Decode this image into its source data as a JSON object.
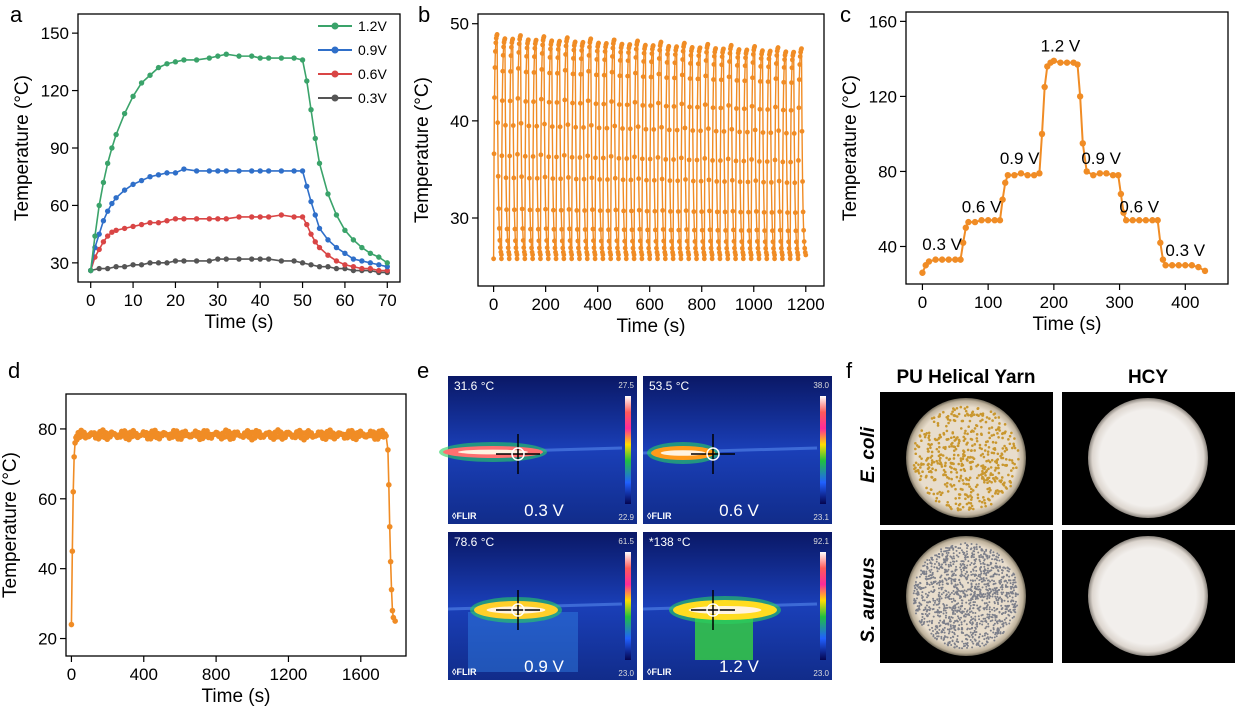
{
  "chart_data": [
    {
      "type": "line",
      "panel": "a",
      "xlabel": "Time (s)",
      "ylabel": "Temperature (°C)",
      "xlim": [
        -3,
        73
      ],
      "ylim": [
        20,
        160
      ],
      "xticks": [
        0,
        10,
        20,
        30,
        40,
        50,
        60,
        70
      ],
      "yticks": [
        30,
        60,
        90,
        120,
        150
      ],
      "legend_position": "top-right",
      "series": [
        {
          "name": "1.2V",
          "color": "#3aa36a",
          "x": [
            0,
            1,
            2,
            3,
            4,
            5,
            6,
            8,
            10,
            12,
            14,
            16,
            18,
            20,
            22,
            25,
            28,
            30,
            32,
            35,
            38,
            40,
            42,
            45,
            48,
            50,
            51,
            52,
            53,
            54,
            56,
            58,
            60,
            62,
            64,
            66,
            68,
            70
          ],
          "y": [
            26,
            44,
            60,
            72,
            82,
            90,
            97,
            108,
            117,
            124,
            128,
            132,
            134,
            135,
            136,
            136,
            137,
            138,
            139,
            138,
            138,
            137,
            137,
            137,
            137,
            136,
            125,
            110,
            95,
            82,
            66,
            55,
            47,
            42,
            38,
            35,
            33,
            30
          ]
        },
        {
          "name": "0.9V",
          "color": "#2f6fc9",
          "x": [
            0,
            1,
            2,
            3,
            4,
            5,
            6,
            8,
            10,
            12,
            14,
            16,
            18,
            20,
            22,
            25,
            28,
            30,
            32,
            35,
            38,
            40,
            42,
            45,
            48,
            50,
            51,
            52,
            53,
            54,
            56,
            58,
            60,
            62,
            64,
            66,
            68,
            70
          ],
          "y": [
            26,
            38,
            45,
            52,
            57,
            61,
            64,
            68,
            71,
            73,
            75,
            76,
            77,
            77,
            79,
            78,
            78,
            78,
            78,
            78,
            78,
            78,
            78,
            78,
            78,
            78,
            70,
            62,
            55,
            48,
            42,
            38,
            35,
            32,
            31,
            30,
            29,
            28
          ]
        },
        {
          "name": "0.6V",
          "color": "#d94545",
          "x": [
            0,
            1,
            2,
            3,
            4,
            5,
            6,
            8,
            10,
            12,
            14,
            16,
            18,
            20,
            22,
            25,
            28,
            30,
            32,
            35,
            38,
            40,
            42,
            45,
            48,
            50,
            51,
            52,
            53,
            54,
            56,
            58,
            60,
            62,
            64,
            66,
            68,
            70
          ],
          "y": [
            26,
            33,
            37,
            41,
            44,
            46,
            47,
            48,
            49,
            50,
            51,
            51,
            52,
            53,
            53,
            53,
            53,
            53,
            53,
            54,
            54,
            54,
            54,
            55,
            54,
            54,
            50,
            45,
            41,
            38,
            34,
            31,
            29,
            28,
            27,
            27,
            26,
            26
          ]
        },
        {
          "name": "0.3V",
          "color": "#555555",
          "x": [
            0,
            2,
            4,
            6,
            8,
            10,
            12,
            14,
            16,
            18,
            20,
            22,
            25,
            28,
            30,
            32,
            35,
            38,
            40,
            42,
            45,
            48,
            50,
            52,
            54,
            56,
            58,
            60,
            62,
            64,
            66,
            68,
            70
          ],
          "y": [
            26,
            27,
            27,
            28,
            28,
            29,
            29,
            30,
            30,
            30,
            31,
            31,
            31,
            31,
            32,
            32,
            32,
            32,
            32,
            32,
            31,
            31,
            30,
            29,
            28,
            28,
            27,
            27,
            26,
            26,
            26,
            25,
            25
          ]
        }
      ]
    },
    {
      "type": "line",
      "panel": "b",
      "xlabel": "Time (s)",
      "ylabel": "Temperature (°C)",
      "xlim": [
        -60,
        1270
      ],
      "ylim": [
        23,
        51
      ],
      "xticks": [
        0,
        200,
        400,
        600,
        800,
        1000,
        1200
      ],
      "xtick_labels": [
        "0",
        "200",
        "400",
        "600",
        "800",
        "1000",
        "1200"
      ],
      "yticks": [
        30,
        40,
        50
      ],
      "color": "#f08c25",
      "cycles": 40,
      "cycle_period": 30,
      "start": 0,
      "peak_max": 48.5,
      "peak_min": 47.0,
      "trough": 25.8
    },
    {
      "type": "line",
      "panel": "c",
      "xlabel": "Time (s)",
      "ylabel": "Temperature (°C)",
      "xlim": [
        -25,
        465
      ],
      "ylim": [
        20,
        165
      ],
      "xticks": [
        0,
        100,
        200,
        300,
        400
      ],
      "yticks": [
        40,
        80,
        120,
        160
      ],
      "color": "#f08c25",
      "x": [
        0,
        5,
        10,
        20,
        30,
        40,
        50,
        58,
        62,
        66,
        70,
        80,
        90,
        100,
        110,
        118,
        122,
        126,
        130,
        140,
        150,
        160,
        170,
        178,
        182,
        186,
        190,
        195,
        200,
        210,
        220,
        230,
        236,
        240,
        244,
        250,
        260,
        270,
        280,
        290,
        298,
        302,
        306,
        310,
        320,
        330,
        340,
        350,
        358,
        362,
        366,
        370,
        380,
        390,
        400,
        410,
        420,
        430
      ],
      "y": [
        26,
        30,
        32,
        33,
        33,
        33,
        33,
        33,
        42,
        50,
        53,
        53,
        54,
        54,
        54,
        54,
        65,
        74,
        78,
        78,
        79,
        78,
        78,
        79,
        100,
        125,
        136,
        138,
        139,
        138,
        138,
        138,
        137,
        120,
        95,
        80,
        78,
        79,
        79,
        78,
        78,
        68,
        58,
        54,
        54,
        54,
        54,
        54,
        54,
        42,
        33,
        30,
        30,
        30,
        30,
        30,
        29,
        27
      ],
      "annotations": [
        {
          "text": "0.3 V",
          "x": 30,
          "y": 38
        },
        {
          "text": "0.6 V",
          "x": 90,
          "y": 58
        },
        {
          "text": "0.9 V",
          "x": 148,
          "y": 84
        },
        {
          "text": "1.2 V",
          "x": 210,
          "y": 144
        },
        {
          "text": "0.9 V",
          "x": 272,
          "y": 84
        },
        {
          "text": "0.6 V",
          "x": 330,
          "y": 58
        },
        {
          "text": "0.3 V",
          "x": 400,
          "y": 35
        }
      ]
    },
    {
      "type": "line",
      "panel": "d",
      "xlabel": "Time (s)",
      "ylabel": "Temperature (°C)",
      "xlim": [
        -30,
        1850
      ],
      "ylim": [
        15,
        90
      ],
      "xticks": [
        0,
        400,
        800,
        1200,
        1600
      ],
      "yticks": [
        20,
        40,
        60,
        80
      ],
      "color": "#f08c25",
      "x": [
        0,
        5,
        10,
        15,
        20,
        25,
        30,
        40,
        60,
        100,
        200,
        400,
        600,
        800,
        1000,
        1200,
        1400,
        1600,
        1700,
        1740,
        1750,
        1755,
        1760,
        1765,
        1770,
        1775,
        1780,
        1790
      ],
      "y": [
        24,
        45,
        62,
        72,
        76,
        77.5,
        78,
        78,
        78,
        78,
        78,
        78.5,
        78.5,
        79,
        79,
        79,
        78.5,
        79,
        79,
        78,
        74,
        64,
        52,
        42,
        34,
        28,
        26,
        25
      ]
    }
  ],
  "panels": {
    "a": "a",
    "b": "b",
    "c": "c",
    "d": "d",
    "e": "e",
    "f": "f"
  },
  "thermal_images": [
    {
      "temp": "31.6 °C",
      "scale_max": "27.5",
      "scale_min": "22.9",
      "voltage": "0.3 V",
      "brand": "FLIR"
    },
    {
      "temp": "53.5 °C",
      "scale_max": "38.0",
      "scale_min": "23.1",
      "voltage": "0.6 V",
      "brand": "FLIR"
    },
    {
      "temp": "78.6 °C",
      "scale_max": "61.5",
      "scale_min": "23.0",
      "voltage": "0.9 V",
      "brand": "FLIR"
    },
    {
      "temp": "*138 °C",
      "scale_max": "92.1",
      "scale_min": "23.0",
      "voltage": "1.2 V",
      "brand": "FLIR"
    }
  ],
  "bacteria": {
    "col_headers": [
      "PU Helical Yarn",
      "HCY"
    ],
    "row_headers": [
      "E. coli",
      "S. aureus"
    ]
  }
}
